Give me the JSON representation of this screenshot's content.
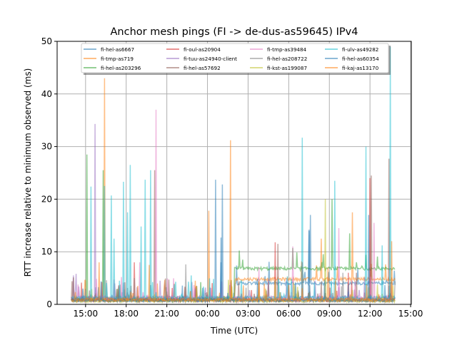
{
  "chart_data": {
    "type": "line",
    "title": "Anchor mesh pings (FI -> de-dus-as59645) IPv4",
    "xlabel": "Time (UTC)",
    "ylabel": "RTT increase relative to minimum observed (ms)",
    "x_unit": "hours since 00:00 of first day",
    "xlim": [
      12.9,
      39.05
    ],
    "ylim": [
      0,
      50
    ],
    "grid": true,
    "legend_placement": "top-center",
    "x_ticks": [
      {
        "value": 15,
        "label": "15:00"
      },
      {
        "value": 18,
        "label": "18:00"
      },
      {
        "value": 21,
        "label": "21:00"
      },
      {
        "value": 24,
        "label": "00:00"
      },
      {
        "value": 27,
        "label": "03:00"
      },
      {
        "value": 30,
        "label": "06:00"
      },
      {
        "value": 33,
        "label": "09:00"
      },
      {
        "value": 36,
        "label": "12:00"
      },
      {
        "value": 39,
        "label": "15:00"
      }
    ],
    "y_ticks": [
      {
        "value": 0,
        "label": "0"
      },
      {
        "value": 10,
        "label": "10"
      },
      {
        "value": 20,
        "label": "20"
      },
      {
        "value": 30,
        "label": "30"
      },
      {
        "value": 40,
        "label": "40"
      },
      {
        "value": 50,
        "label": "50"
      }
    ],
    "x_range": [
      13.95,
      37.85
    ],
    "series": [
      {
        "name": "fi-hel-as6667",
        "color": "#1f77b4",
        "levels": [
          [
            13.95,
            0.6
          ],
          [
            26.05,
            3.7
          ]
        ],
        "spikes": [
          [
            24.6,
            23.7
          ],
          [
            25.1,
            22.8
          ],
          [
            31.6,
            17
          ],
          [
            25.0,
            8
          ],
          [
            31.5,
            14
          ]
        ]
      },
      {
        "name": "fi-tmp-as719",
        "color": "#ff7f0e",
        "levels": [
          [
            13.95,
            0.8
          ],
          [
            26.05,
            4.5
          ]
        ],
        "spikes": [
          [
            16.4,
            43
          ],
          [
            25.7,
            31.2
          ],
          [
            24.1,
            17.8
          ],
          [
            32.4,
            12.5
          ],
          [
            34.7,
            17.5
          ],
          [
            23.1,
            4.5
          ]
        ]
      },
      {
        "name": "fi-hel-as203296",
        "color": "#2ca02c",
        "levels": [
          [
            13.95,
            0.7
          ],
          [
            26.0,
            6.5
          ]
        ],
        "spikes": [
          [
            15.1,
            28.5
          ],
          [
            16.3,
            25.5
          ],
          [
            33.2,
            20
          ],
          [
            34.5,
            13.5
          ],
          [
            26.6,
            8.5
          ],
          [
            35.0,
            8
          ]
        ]
      },
      {
        "name": "fi-oul-as20904",
        "color": "#d62728",
        "levels": [
          [
            13.95,
            0.5
          ]
        ],
        "spikes": [
          [
            36.0,
            24
          ],
          [
            38.3,
            12
          ],
          [
            29.0,
            11.8
          ],
          [
            31.0,
            8
          ],
          [
            34.4,
            6
          ],
          [
            18.6,
            8
          ]
        ]
      },
      {
        "name": "fi-tuu-as24940-client",
        "color": "#9467bd",
        "levels": [
          [
            13.95,
            1.0
          ]
        ],
        "spikes": [
          [
            15.7,
            34.3
          ],
          [
            14.1,
            5.5
          ],
          [
            14.3,
            5.8
          ],
          [
            20.5,
            4.5
          ],
          [
            28.5,
            4.8
          ]
        ]
      },
      {
        "name": "fi-hel-as57692",
        "color": "#8c564b",
        "levels": [
          [
            13.95,
            0.6
          ]
        ],
        "spikes": [
          [
            37.4,
            27.7
          ],
          [
            36.1,
            24.5
          ],
          [
            20.1,
            25.5
          ],
          [
            29.2,
            11.5
          ],
          [
            35.0,
            6
          ]
        ]
      },
      {
        "name": "fi-tmp-as39484",
        "color": "#e377c2",
        "levels": [
          [
            13.95,
            0.8
          ]
        ],
        "spikes": [
          [
            20.2,
            37
          ],
          [
            38.1,
            39.2
          ],
          [
            36.3,
            15.5
          ],
          [
            30.3,
            11
          ],
          [
            33.7,
            14.5
          ],
          [
            19.0,
            8
          ],
          [
            27.8,
            7
          ]
        ]
      },
      {
        "name": "fi-hel-as208722",
        "color": "#7f7f7f",
        "levels": [
          [
            13.95,
            0.4
          ]
        ],
        "spikes": [
          [
            22.4,
            7.6
          ],
          [
            18.6,
            5
          ],
          [
            34.0,
            6
          ]
        ]
      },
      {
        "name": "fi-kst-as199087",
        "color": "#bcbd22",
        "levels": [
          [
            13.95,
            0.4
          ]
        ],
        "spikes": [
          [
            32.7,
            20
          ],
          [
            23.2,
            3.5
          ],
          [
            28.3,
            3
          ]
        ]
      },
      {
        "name": "fi-ulv-as49282",
        "color": "#17becf",
        "levels": [
          [
            13.95,
            0.9
          ]
        ],
        "spikes": [
          [
            16.4,
            22.5
          ],
          [
            16.9,
            20.7
          ],
          [
            17.8,
            23.3
          ],
          [
            18.3,
            26.5
          ],
          [
            19.4,
            23.7
          ],
          [
            19.8,
            25.5
          ],
          [
            31.0,
            31.7
          ],
          [
            33.4,
            23.5
          ],
          [
            35.7,
            30
          ],
          [
            37.5,
            49
          ],
          [
            15.4,
            22.4
          ],
          [
            17.1,
            12.5
          ],
          [
            18.1,
            17.5
          ],
          [
            19.1,
            14.8
          ],
          [
            22.8,
            5.5
          ],
          [
            36.9,
            11.2
          ]
        ]
      },
      {
        "name": "fi-hel-as60354",
        "color": "#1f77b4",
        "levels": [
          [
            13.95,
            0.5
          ]
        ],
        "spikes": [
          [
            25.0,
            12.7
          ],
          [
            31.5,
            14.2
          ],
          [
            35.9,
            17
          ],
          [
            14.8,
            3
          ]
        ]
      },
      {
        "name": "fi-kaj-as13170",
        "color": "#ff7f0e",
        "levels": [
          [
            13.95,
            0.6
          ]
        ],
        "spikes": [
          [
            16.0,
            8
          ],
          [
            19.7,
            7.5
          ],
          [
            37.6,
            12
          ],
          [
            32.9,
            7
          ]
        ]
      }
    ]
  }
}
